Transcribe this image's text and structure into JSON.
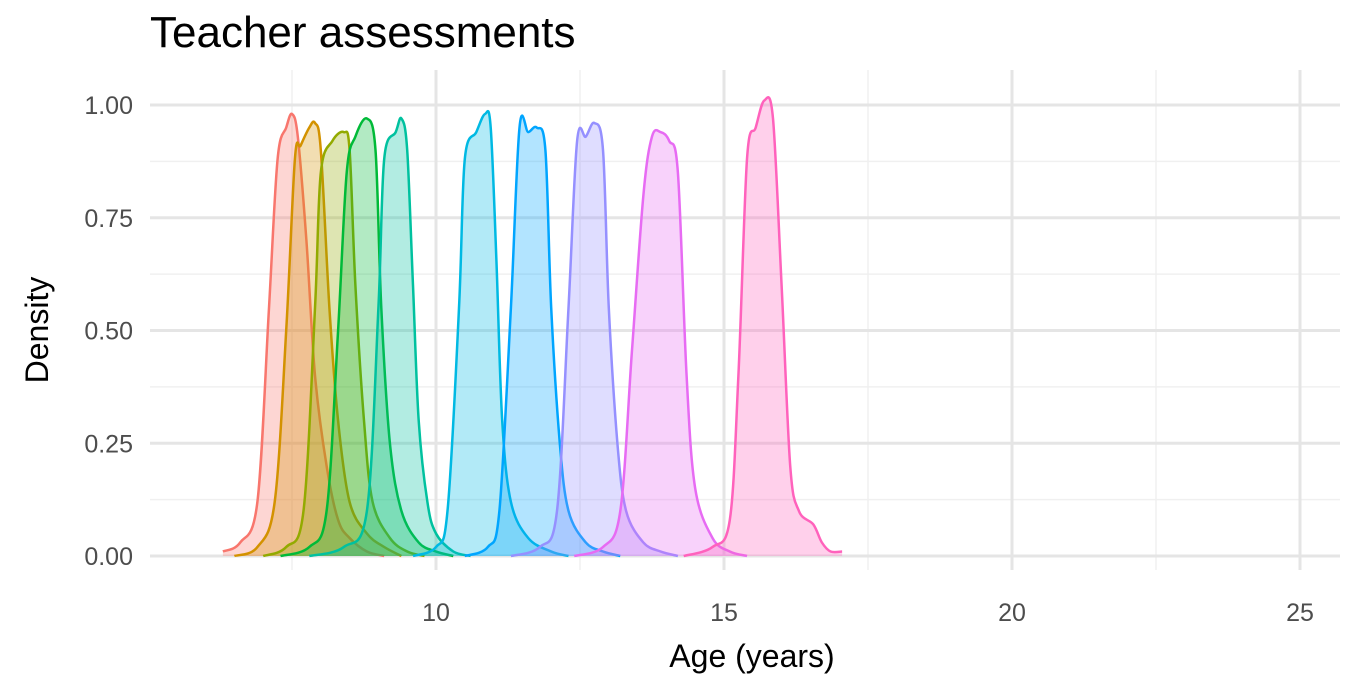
{
  "chart_data": {
    "type": "area",
    "title": "Teacher assessments",
    "xlabel": "Age (years)",
    "ylabel": "Density",
    "xlim": [
      5,
      26
    ],
    "ylim": [
      0,
      1.05
    ],
    "x_ticks": [
      10,
      15,
      20,
      25
    ],
    "y_ticks": [
      0.0,
      0.25,
      0.5,
      0.75,
      1.0
    ],
    "x_tick_labels": [
      "10",
      "15",
      "20",
      "25"
    ],
    "y_tick_labels": [
      "0.00",
      "0.25",
      "0.50",
      "0.75",
      "1.00"
    ],
    "grid": true,
    "legend": "none",
    "series": [
      {
        "color": "#F8766D",
        "x": [
          6.3,
          6.6,
          6.9,
          7.1,
          7.25,
          7.4,
          7.5,
          7.6,
          7.75,
          7.9,
          8.1,
          8.3,
          8.5,
          8.8,
          9.1
        ],
        "y": [
          0.01,
          0.03,
          0.12,
          0.55,
          0.88,
          0.95,
          0.98,
          0.93,
          0.7,
          0.4,
          0.2,
          0.08,
          0.04,
          0.01,
          0.0
        ]
      },
      {
        "color": "#D39200",
        "x": [
          6.5,
          6.9,
          7.2,
          7.4,
          7.55,
          7.65,
          7.8,
          7.9,
          8.0,
          8.15,
          8.3,
          8.5,
          8.8,
          9.1,
          9.4
        ],
        "y": [
          0.0,
          0.02,
          0.12,
          0.5,
          0.88,
          0.91,
          0.95,
          0.96,
          0.9,
          0.55,
          0.3,
          0.12,
          0.05,
          0.02,
          0.0
        ]
      },
      {
        "color": "#93AA00",
        "x": [
          7.0,
          7.4,
          7.7,
          7.9,
          8.0,
          8.2,
          8.4,
          8.5,
          8.6,
          8.75,
          8.9,
          9.2,
          9.5,
          9.8
        ],
        "y": [
          0.0,
          0.02,
          0.1,
          0.55,
          0.85,
          0.92,
          0.94,
          0.9,
          0.6,
          0.3,
          0.12,
          0.04,
          0.01,
          0.0
        ]
      },
      {
        "color": "#00BA38",
        "x": [
          7.3,
          7.8,
          8.1,
          8.3,
          8.45,
          8.6,
          8.8,
          8.95,
          9.05,
          9.2,
          9.4,
          9.7,
          10.0,
          10.3
        ],
        "y": [
          0.0,
          0.02,
          0.1,
          0.5,
          0.85,
          0.93,
          0.97,
          0.9,
          0.55,
          0.25,
          0.1,
          0.03,
          0.01,
          0.0
        ]
      },
      {
        "color": "#00C19F",
        "x": [
          7.8,
          8.4,
          8.8,
          9.0,
          9.1,
          9.3,
          9.4,
          9.5,
          9.6,
          9.7,
          9.85,
          10.0,
          10.3,
          10.6
        ],
        "y": [
          0.0,
          0.02,
          0.1,
          0.55,
          0.88,
          0.94,
          0.97,
          0.9,
          0.6,
          0.3,
          0.12,
          0.05,
          0.01,
          0.0
        ]
      },
      {
        "color": "#00B9E3",
        "x": [
          9.6,
          10.0,
          10.2,
          10.4,
          10.5,
          10.7,
          10.85,
          10.95,
          11.05,
          11.15,
          11.3,
          11.6,
          12.0,
          12.3
        ],
        "y": [
          0.0,
          0.02,
          0.1,
          0.55,
          0.88,
          0.94,
          0.98,
          0.95,
          0.65,
          0.3,
          0.12,
          0.04,
          0.01,
          0.0
        ]
      },
      {
        "color": "#00A5FF",
        "x": [
          10.5,
          10.9,
          11.1,
          11.3,
          11.45,
          11.6,
          11.75,
          11.9,
          12.0,
          12.15,
          12.3,
          12.6,
          12.9,
          13.2
        ],
        "y": [
          0.0,
          0.02,
          0.1,
          0.55,
          0.95,
          0.94,
          0.95,
          0.9,
          0.55,
          0.25,
          0.1,
          0.03,
          0.01,
          0.0
        ]
      },
      {
        "color": "#9590FF",
        "x": [
          11.3,
          11.8,
          12.1,
          12.3,
          12.45,
          12.6,
          12.75,
          12.9,
          13.0,
          13.15,
          13.3,
          13.6,
          13.9,
          14.2
        ],
        "y": [
          0.0,
          0.02,
          0.1,
          0.55,
          0.92,
          0.93,
          0.96,
          0.9,
          0.55,
          0.25,
          0.1,
          0.03,
          0.01,
          0.0
        ]
      },
      {
        "color": "#E76BF3",
        "x": [
          12.4,
          12.9,
          13.2,
          13.4,
          13.6,
          13.75,
          13.9,
          14.05,
          14.2,
          14.35,
          14.5,
          14.8,
          15.1,
          15.4
        ],
        "y": [
          0.0,
          0.02,
          0.1,
          0.45,
          0.8,
          0.93,
          0.94,
          0.92,
          0.85,
          0.4,
          0.15,
          0.04,
          0.01,
          0.0
        ]
      },
      {
        "color": "#FF62BC",
        "x": [
          14.3,
          14.8,
          15.1,
          15.25,
          15.4,
          15.55,
          15.7,
          15.85,
          16.0,
          16.15,
          16.3,
          16.55,
          16.7,
          16.85,
          17.05
        ],
        "y": [
          0.0,
          0.02,
          0.08,
          0.4,
          0.88,
          0.95,
          1.01,
          0.97,
          0.6,
          0.2,
          0.1,
          0.07,
          0.03,
          0.01,
          0.01
        ]
      }
    ]
  }
}
